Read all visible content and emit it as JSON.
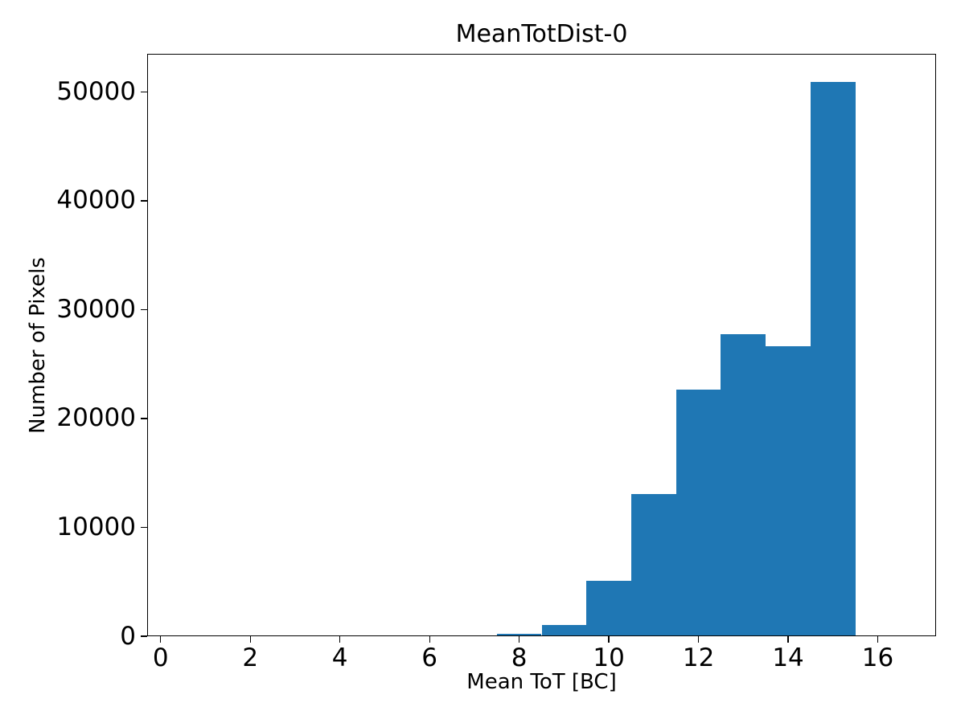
{
  "figure": {
    "background": "#ffffff"
  },
  "chart_data": {
    "type": "bar",
    "subtype": "histogram",
    "title": "MeanTotDist-0",
    "xlabel": "Mean ToT [BC]",
    "ylabel": "Number of Pixels",
    "bar_color": "#1f77b4",
    "axis_color": "#000000",
    "text_color": "#000000",
    "grid": false,
    "legend_position": "none",
    "xlim": [
      -0.3,
      17.3
    ],
    "ylim": [
      0,
      53500
    ],
    "xticks": [
      0,
      2,
      4,
      6,
      8,
      10,
      12,
      14,
      16
    ],
    "yticks": [
      0,
      10000,
      20000,
      30000,
      40000,
      50000
    ],
    "bin_width": 1,
    "bins": [
      {
        "x0": 7.5,
        "x1": 8.5,
        "count": 250
      },
      {
        "x0": 8.5,
        "x1": 9.5,
        "count": 1030
      },
      {
        "x0": 9.5,
        "x1": 10.5,
        "count": 5090
      },
      {
        "x0": 10.5,
        "x1": 11.5,
        "count": 13060
      },
      {
        "x0": 11.5,
        "x1": 12.5,
        "count": 22650
      },
      {
        "x0": 12.5,
        "x1": 13.5,
        "count": 27750
      },
      {
        "x0": 13.5,
        "x1": 14.5,
        "count": 26640
      },
      {
        "x0": 14.5,
        "x1": 15.5,
        "count": 50920
      }
    ]
  }
}
